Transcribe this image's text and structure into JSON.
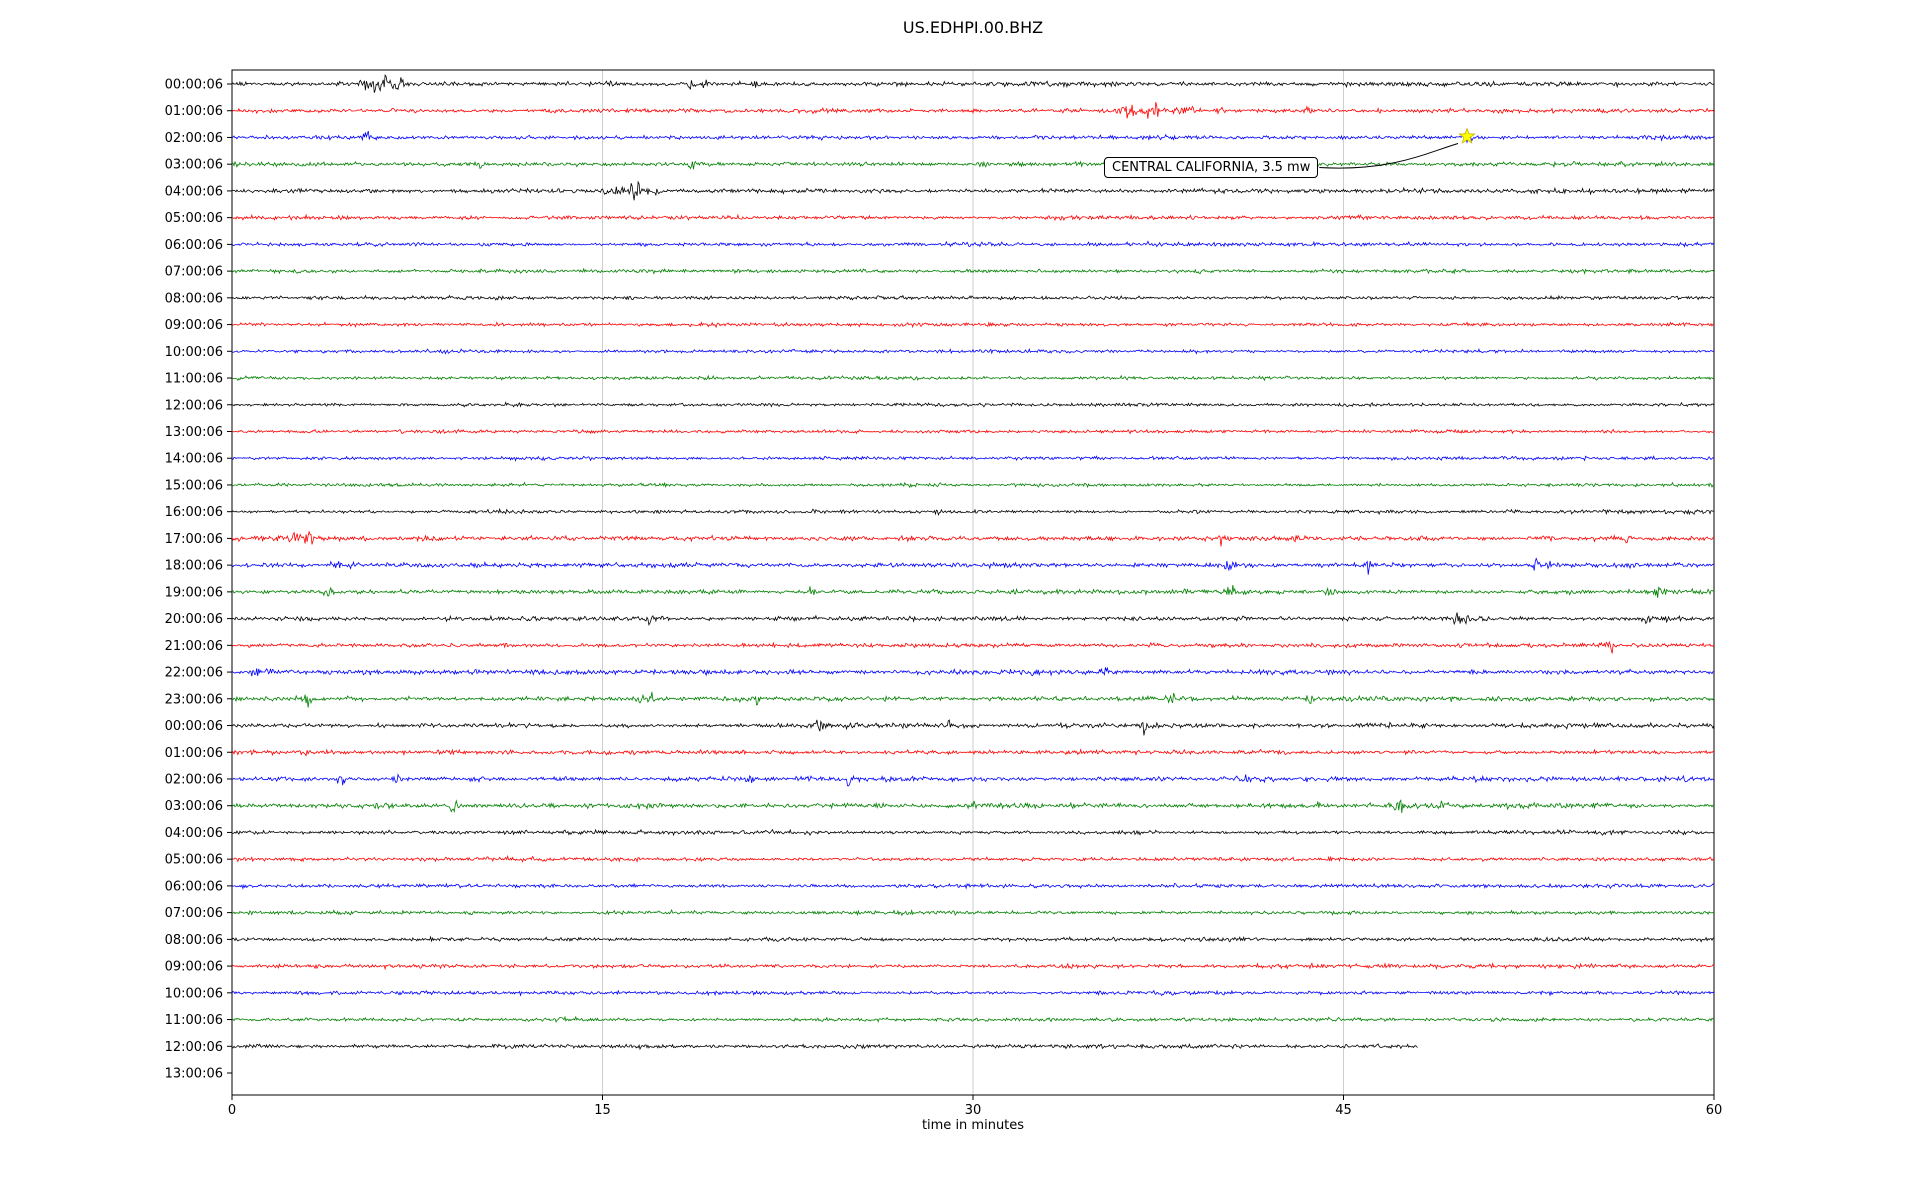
{
  "chart_data": {
    "type": "line",
    "title": "US.EDHPI.00.BHZ",
    "xlabel": "time in minutes",
    "xlim": [
      0,
      60
    ],
    "x_ticks": [
      0,
      15,
      30,
      45,
      60
    ],
    "grid": "vertical-gridlines-at-15-30-45",
    "legend": "none",
    "trace_colors_cycle": [
      "black",
      "red",
      "blue",
      "green"
    ],
    "colors": {
      "black": "#000000",
      "red": "#ff0000",
      "blue": "#0000ff",
      "green": "#008000",
      "grid": "#c9c9c9",
      "star_fill": "#ffff00"
    },
    "annotation": {
      "text": "CENTRAL CALIFORNIA, 3.5 mw",
      "row": 2,
      "minute": 50,
      "marker": "star",
      "marker_color": "#ffff00"
    },
    "rows": [
      {
        "label": "00:00:06",
        "color": "black",
        "amp": 1.1,
        "events": [
          {
            "t": 5.6,
            "a": 4,
            "d": 0.2
          },
          {
            "t": 6.3,
            "a": 3,
            "d": 0.3
          },
          {
            "t": 6.9,
            "a": 2,
            "d": 0.15
          },
          {
            "t": 15.3,
            "a": 2.2,
            "d": 0.1
          },
          {
            "t": 18.6,
            "a": 3,
            "d": 0.12
          },
          {
            "t": 19.2,
            "a": 2,
            "d": 0.1
          },
          {
            "t": 21.2,
            "a": 2.5,
            "d": 0.08
          }
        ]
      },
      {
        "label": "01:00:06",
        "color": "red",
        "amp": 1.0,
        "events": [
          {
            "t": 36.6,
            "a": 3,
            "d": 0.5
          },
          {
            "t": 37.4,
            "a": 3.5,
            "d": 0.2
          },
          {
            "t": 38.6,
            "a": 2,
            "d": 0.3
          },
          {
            "t": 40.0,
            "a": 2,
            "d": 0.15
          },
          {
            "t": 43.6,
            "a": 4,
            "d": 0.1
          }
        ]
      },
      {
        "label": "02:00:06",
        "color": "blue",
        "amp": 0.95,
        "events": [
          {
            "t": 5.4,
            "a": 3.5,
            "d": 0.1
          },
          {
            "t": 50,
            "a": 1.2,
            "d": 0.15
          }
        ]
      },
      {
        "label": "03:00:06",
        "color": "green",
        "amp": 1.0,
        "events": [
          {
            "t": 9.9,
            "a": 3.5,
            "d": 0.1
          },
          {
            "t": 18.6,
            "a": 2.5,
            "d": 0.12
          },
          {
            "t": 22.4,
            "a": 1.5,
            "d": 0.1
          },
          {
            "t": 30.5,
            "a": 1.2,
            "d": 0.1
          }
        ]
      },
      {
        "label": "04:00:06",
        "color": "black",
        "amp": 1.0,
        "events": [
          {
            "t": 15.1,
            "a": 2.5,
            "d": 0.15
          },
          {
            "t": 16.0,
            "a": 2,
            "d": 0.4
          },
          {
            "t": 16.4,
            "a": 3.5,
            "d": 0.12
          },
          {
            "t": 17.1,
            "a": 3,
            "d": 0.1
          }
        ]
      },
      {
        "label": "05:00:06",
        "color": "red",
        "amp": 0.85,
        "events": []
      },
      {
        "label": "06:00:06",
        "color": "blue",
        "amp": 0.85,
        "events": []
      },
      {
        "label": "07:00:06",
        "color": "green",
        "amp": 0.85,
        "events": []
      },
      {
        "label": "08:00:06",
        "color": "black",
        "amp": 0.8,
        "events": []
      },
      {
        "label": "09:00:06",
        "color": "red",
        "amp": 0.8,
        "events": []
      },
      {
        "label": "10:00:06",
        "color": "blue",
        "amp": 0.8,
        "events": []
      },
      {
        "label": "11:00:06",
        "color": "green",
        "amp": 0.8,
        "events": []
      },
      {
        "label": "12:00:06",
        "color": "black",
        "amp": 0.8,
        "events": []
      },
      {
        "label": "13:00:06",
        "color": "red",
        "amp": 0.8,
        "events": []
      },
      {
        "label": "14:00:06",
        "color": "blue",
        "amp": 0.8,
        "events": []
      },
      {
        "label": "15:00:06",
        "color": "green",
        "amp": 0.8,
        "events": []
      },
      {
        "label": "16:00:06",
        "color": "black",
        "amp": 0.85,
        "events": [
          {
            "t": 28.6,
            "a": 1.5,
            "d": 0.1
          }
        ]
      },
      {
        "label": "17:00:06",
        "color": "red",
        "amp": 1.05,
        "events": [
          {
            "t": 2.5,
            "a": 2.5,
            "d": 0.15
          },
          {
            "t": 3.1,
            "a": 3.5,
            "d": 0.12
          },
          {
            "t": 40,
            "a": 2.2,
            "d": 0.12
          },
          {
            "t": 43,
            "a": 2.5,
            "d": 0.1
          },
          {
            "t": 53.2,
            "a": 2,
            "d": 0.15
          },
          {
            "t": 56.5,
            "a": 1.8,
            "d": 0.1
          }
        ]
      },
      {
        "label": "18:00:06",
        "color": "blue",
        "amp": 1.05,
        "events": [
          {
            "t": 4.3,
            "a": 2.5,
            "d": 0.2
          },
          {
            "t": 5.0,
            "a": 2,
            "d": 0.15
          },
          {
            "t": 36.6,
            "a": 2.2,
            "d": 0.1
          },
          {
            "t": 40.4,
            "a": 2.5,
            "d": 0.1
          },
          {
            "t": 46,
            "a": 2,
            "d": 0.1
          },
          {
            "t": 52.8,
            "a": 2.5,
            "d": 0.12
          },
          {
            "t": 53.4,
            "a": 2,
            "d": 0.1
          }
        ]
      },
      {
        "label": "19:00:06",
        "color": "green",
        "amp": 1.05,
        "events": [
          {
            "t": 3.9,
            "a": 2.8,
            "d": 0.12
          },
          {
            "t": 23.4,
            "a": 2.8,
            "d": 0.1
          },
          {
            "t": 40.4,
            "a": 2.8,
            "d": 0.12
          },
          {
            "t": 44.5,
            "a": 1.8,
            "d": 0.1
          },
          {
            "t": 57.8,
            "a": 3,
            "d": 0.15
          }
        ]
      },
      {
        "label": "20:00:06",
        "color": "black",
        "amp": 1.05,
        "events": [
          {
            "t": 16.9,
            "a": 4.5,
            "d": 0.08
          },
          {
            "t": 17.4,
            "a": 2.5,
            "d": 0.1
          },
          {
            "t": 49.7,
            "a": 2.2,
            "d": 0.2
          },
          {
            "t": 57.3,
            "a": 3,
            "d": 0.15
          },
          {
            "t": 58,
            "a": 2,
            "d": 0.1
          }
        ]
      },
      {
        "label": "21:00:06",
        "color": "red",
        "amp": 1.0,
        "events": [
          {
            "t": 55.8,
            "a": 3,
            "d": 0.1
          }
        ]
      },
      {
        "label": "22:00:06",
        "color": "blue",
        "amp": 1.05,
        "events": [
          {
            "t": 0.9,
            "a": 2.8,
            "d": 0.15
          },
          {
            "t": 1.5,
            "a": 2,
            "d": 0.1
          },
          {
            "t": 32.4,
            "a": 2.2,
            "d": 0.1
          },
          {
            "t": 35.3,
            "a": 2,
            "d": 0.12
          }
        ]
      },
      {
        "label": "23:00:06",
        "color": "green",
        "amp": 1.1,
        "events": [
          {
            "t": 3.1,
            "a": 2.5,
            "d": 0.12
          },
          {
            "t": 16.5,
            "a": 4,
            "d": 0.12
          },
          {
            "t": 17.0,
            "a": 2.5,
            "d": 0.1
          },
          {
            "t": 21.2,
            "a": 2,
            "d": 0.1
          },
          {
            "t": 38,
            "a": 2.5,
            "d": 0.12
          },
          {
            "t": 43.6,
            "a": 2.2,
            "d": 0.1
          }
        ]
      },
      {
        "label": "00:00:06",
        "color": "black",
        "amp": 1.05,
        "events": [
          {
            "t": 23.8,
            "a": 2,
            "d": 0.15
          },
          {
            "t": 29,
            "a": 1.6,
            "d": 0.1
          },
          {
            "t": 36.9,
            "a": 3.2,
            "d": 0.08
          }
        ]
      },
      {
        "label": "01:00:06",
        "color": "red",
        "amp": 0.95,
        "events": []
      },
      {
        "label": "02:00:06",
        "color": "blue",
        "amp": 1.05,
        "events": [
          {
            "t": 4.4,
            "a": 2.8,
            "d": 0.12
          },
          {
            "t": 6.7,
            "a": 2.2,
            "d": 0.15
          },
          {
            "t": 10,
            "a": 1.6,
            "d": 0.1
          },
          {
            "t": 21,
            "a": 2,
            "d": 0.1
          },
          {
            "t": 25,
            "a": 1.8,
            "d": 0.1
          },
          {
            "t": 41,
            "a": 1.8,
            "d": 0.1
          }
        ]
      },
      {
        "label": "03:00:06",
        "color": "green",
        "amp": 1.1,
        "events": [
          {
            "t": 9,
            "a": 2,
            "d": 0.12
          },
          {
            "t": 30,
            "a": 1.5,
            "d": 0.1
          },
          {
            "t": 44,
            "a": 1.5,
            "d": 0.1
          },
          {
            "t": 47.3,
            "a": 2.8,
            "d": 0.15
          },
          {
            "t": 48.9,
            "a": 2.8,
            "d": 0.12
          }
        ]
      },
      {
        "label": "04:00:06",
        "color": "black",
        "amp": 0.9,
        "events": []
      },
      {
        "label": "05:00:06",
        "color": "red",
        "amp": 0.9,
        "events": []
      },
      {
        "label": "06:00:06",
        "color": "blue",
        "amp": 0.85,
        "events": []
      },
      {
        "label": "07:00:06",
        "color": "green",
        "amp": 0.85,
        "events": []
      },
      {
        "label": "08:00:06",
        "color": "black",
        "amp": 0.9,
        "events": []
      },
      {
        "label": "09:00:06",
        "color": "red",
        "amp": 0.9,
        "events": []
      },
      {
        "label": "10:00:06",
        "color": "blue",
        "amp": 0.85,
        "events": []
      },
      {
        "label": "11:00:06",
        "color": "green",
        "amp": 0.85,
        "events": []
      },
      {
        "label": "12:00:06",
        "color": "black",
        "amp": 0.9,
        "end": 48,
        "events": []
      },
      {
        "label": "13:00:06",
        "color": "black",
        "trace": false,
        "events": []
      }
    ]
  }
}
